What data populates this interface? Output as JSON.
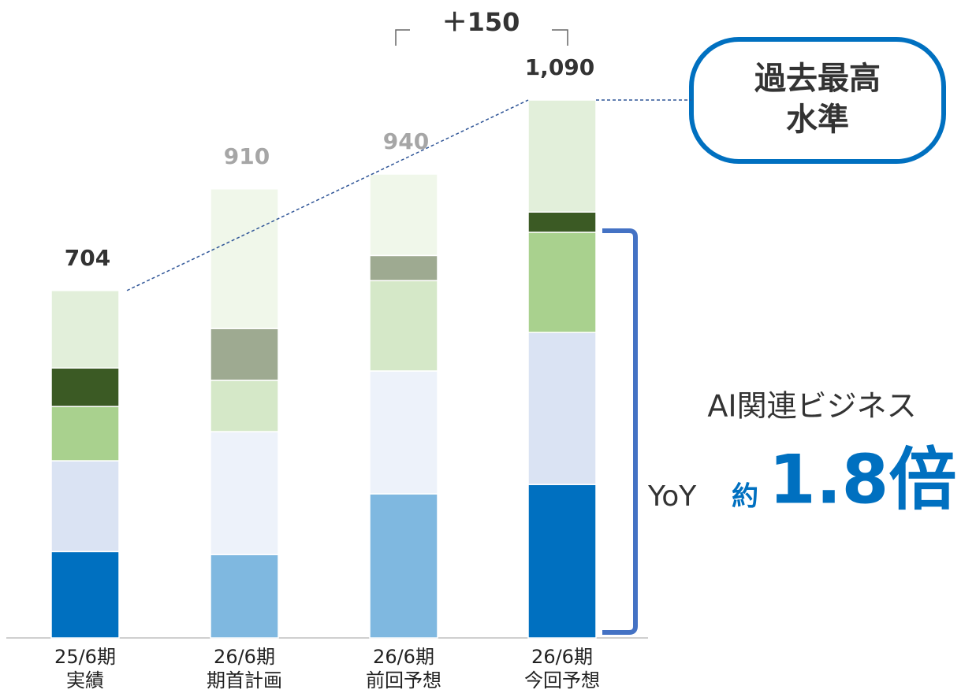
{
  "chart_data": {
    "type": "stacked-bar",
    "categories": [
      [
        "25/6期",
        "実績"
      ],
      [
        "26/6期",
        "期首計画"
      ],
      [
        "26/6期",
        "前回予想"
      ],
      [
        "26/6期",
        "今回予想"
      ]
    ],
    "series": [
      {
        "values": [
          175,
          169,
          292,
          311
        ],
        "colors": [
          "#0070c0",
          "#7fb8e0",
          "#7fb8e0",
          "#0070c0"
        ]
      },
      {
        "values": [
          184,
          249,
          249,
          308
        ],
        "colors": [
          "#dae3f3",
          "#edf2fa",
          "#edf2fa",
          "#dae3f3"
        ]
      },
      {
        "values": [
          110,
          104,
          183,
          203
        ],
        "colors": [
          "#a9d18e",
          "#d5e8c8",
          "#d5e8c8",
          "#a9d18e"
        ]
      },
      {
        "values": [
          78,
          105,
          51,
          41
        ],
        "colors": [
          "#3b5a24",
          "#9eaa91",
          "#9eaa91",
          "#3b5a24"
        ]
      },
      {
        "values": [
          157,
          283,
          165,
          227
        ],
        "colors": [
          "#e2efda",
          "#f0f7ea",
          "#f0f7ea",
          "#e2efda"
        ]
      }
    ],
    "totals": [
      704,
      910,
      940,
      1090
    ],
    "total_labels": [
      "704",
      "910",
      "940",
      "1,090"
    ],
    "total_colors": [
      "#333333",
      "#a6a6a6",
      "#a6a6a6",
      "#333333"
    ],
    "difference_label": "＋150",
    "callout": [
      "過去最高",
      "水準"
    ],
    "annotation": "AI関連ビジネス",
    "growth_prefix": "YoY",
    "growth_approx": "約",
    "growth_value": "1.8倍"
  }
}
